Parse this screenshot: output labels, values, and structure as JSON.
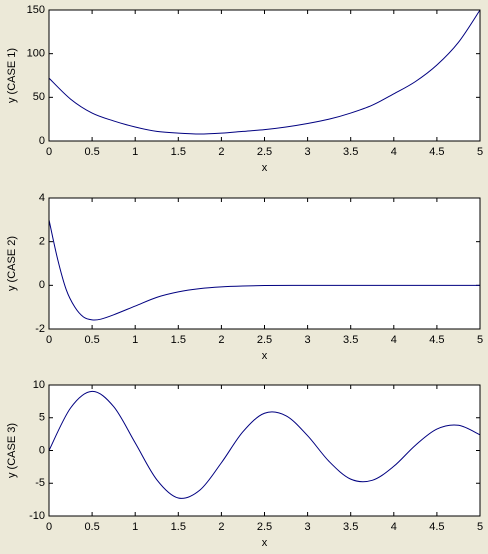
{
  "chart_data": [
    {
      "type": "line",
      "xlabel": "x",
      "ylabel": "y (CASE 1)",
      "color": "#000080",
      "x": [
        0,
        0.25,
        0.5,
        0.75,
        1,
        1.25,
        1.5,
        1.75,
        2,
        2.25,
        2.5,
        2.75,
        3,
        3.25,
        3.5,
        3.75,
        4,
        4.25,
        4.5,
        4.75,
        5
      ],
      "values": [
        72,
        48,
        32,
        23,
        16,
        11,
        9,
        8,
        9,
        11,
        13,
        16,
        20,
        25,
        32,
        41,
        54,
        68,
        87,
        113,
        150
      ],
      "xlim": [
        0,
        5
      ],
      "ylim": [
        0,
        150
      ],
      "xticks": [
        0,
        0.5,
        1,
        1.5,
        2,
        2.5,
        3,
        3.5,
        4,
        4.5,
        5
      ],
      "yticks": [
        0,
        50,
        100,
        150
      ]
    },
    {
      "type": "line",
      "xlabel": "x",
      "ylabel": "y (CASE 2)",
      "color": "#000080",
      "x": [
        0,
        0.1,
        0.2,
        0.3,
        0.4,
        0.5,
        0.6,
        0.75,
        1,
        1.25,
        1.5,
        1.75,
        2,
        2.25,
        2.5,
        3,
        3.5,
        4,
        4.5,
        5
      ],
      "values": [
        3,
        1.2,
        -0.2,
        -1.0,
        -1.45,
        -1.58,
        -1.55,
        -1.35,
        -0.95,
        -0.55,
        -0.3,
        -0.15,
        -0.07,
        -0.03,
        -0.01,
        0,
        0,
        0,
        0,
        0
      ],
      "xlim": [
        0,
        5
      ],
      "ylim": [
        -2,
        4
      ],
      "xticks": [
        0,
        0.5,
        1,
        1.5,
        2,
        2.5,
        3,
        3.5,
        4,
        4.5,
        5
      ],
      "yticks": [
        -2,
        0,
        2,
        4
      ]
    },
    {
      "type": "line",
      "xlabel": "x",
      "ylabel": "y (CASE 3)",
      "color": "#000080",
      "x": [
        0,
        0.25,
        0.5,
        0.75,
        1,
        1.25,
        1.5,
        1.75,
        2,
        2.25,
        2.5,
        2.75,
        3,
        3.25,
        3.5,
        3.75,
        4,
        4.25,
        4.5,
        4.75,
        5
      ],
      "values": [
        0,
        6.49,
        9.03,
        6.7,
        1.16,
        -4.45,
        -7.25,
        -6.05,
        -1.87,
        2.87,
        5.69,
        5.3,
        2.26,
        -1.68,
        -4.37,
        -4.55,
        -2.41,
        0.79,
        3.27,
        3.85,
        2.39
      ],
      "xlim": [
        0,
        5
      ],
      "ylim": [
        -10,
        10
      ],
      "xticks": [
        0,
        0.5,
        1,
        1.5,
        2,
        2.5,
        3,
        3.5,
        4,
        4.5,
        5
      ],
      "yticks": [
        -10,
        -5,
        0,
        5,
        10
      ]
    }
  ]
}
